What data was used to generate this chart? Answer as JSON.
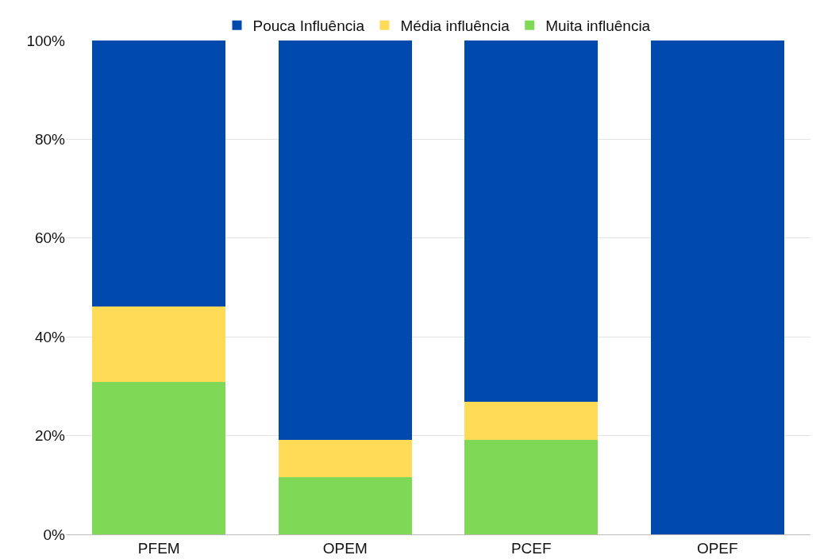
{
  "chart_data": {
    "type": "bar",
    "stacked": true,
    "categories": [
      "PFEM",
      "OPEM",
      "PCEF",
      "OPEF"
    ],
    "series": [
      {
        "name": "Muita influência",
        "color": "#7fd957",
        "values": [
          30.8,
          11.5,
          19.2,
          0
        ]
      },
      {
        "name": "Média influência",
        "color": "#ffdb58",
        "values": [
          15.4,
          7.7,
          7.7,
          0
        ]
      },
      {
        "name": "Pouca Influência",
        "color": "#004aad",
        "values": [
          53.8,
          80.8,
          73.1,
          100
        ]
      }
    ],
    "ylim": [
      0,
      100
    ],
    "yticks": [
      {
        "value": 0,
        "label": "0%"
      },
      {
        "value": 20,
        "label": "20%"
      },
      {
        "value": 40,
        "label": "40%"
      },
      {
        "value": 60,
        "label": "60%"
      },
      {
        "value": 80,
        "label": "80%"
      },
      {
        "value": 100,
        "label": "100%"
      }
    ],
    "grid": "y",
    "legend": "top"
  }
}
